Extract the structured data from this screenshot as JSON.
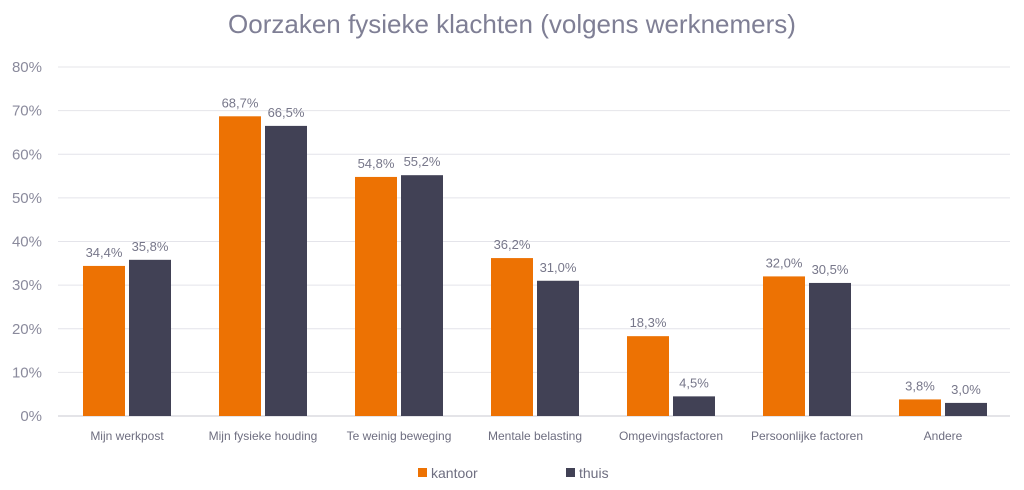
{
  "chart_data": {
    "type": "bar",
    "title": "Oorzaken fysieke klachten (volgens werknemers)",
    "xlabel": "",
    "ylabel": "",
    "ylim": [
      0,
      80
    ],
    "yticks": [
      "0%",
      "10%",
      "20%",
      "30%",
      "40%",
      "50%",
      "60%",
      "70%",
      "80%"
    ],
    "grid": true,
    "legend_position": "bottom",
    "categories": [
      "Mijn werkpost",
      "Mijn fysieke houding",
      "Te weinig beweging",
      "Mentale belasting",
      "Omgevingsfactoren",
      "Persoonlijke factoren",
      "Andere"
    ],
    "series": [
      {
        "name": "kantoor",
        "color": "#ED7203",
        "values": [
          34.4,
          68.7,
          54.8,
          36.2,
          18.3,
          32.0,
          3.8
        ],
        "labels": [
          "34,4%",
          "68,7%",
          "54,8%",
          "36,2%",
          "18,3%",
          "32,0%",
          "3,8%"
        ]
      },
      {
        "name": "thuis",
        "color": "#414155",
        "values": [
          35.8,
          66.5,
          55.2,
          31.0,
          4.5,
          30.5,
          3.0
        ],
        "labels": [
          "35,8%",
          "66,5%",
          "55,2%",
          "31,0%",
          "4,5%",
          "30,5%",
          "3,0%"
        ]
      }
    ]
  }
}
